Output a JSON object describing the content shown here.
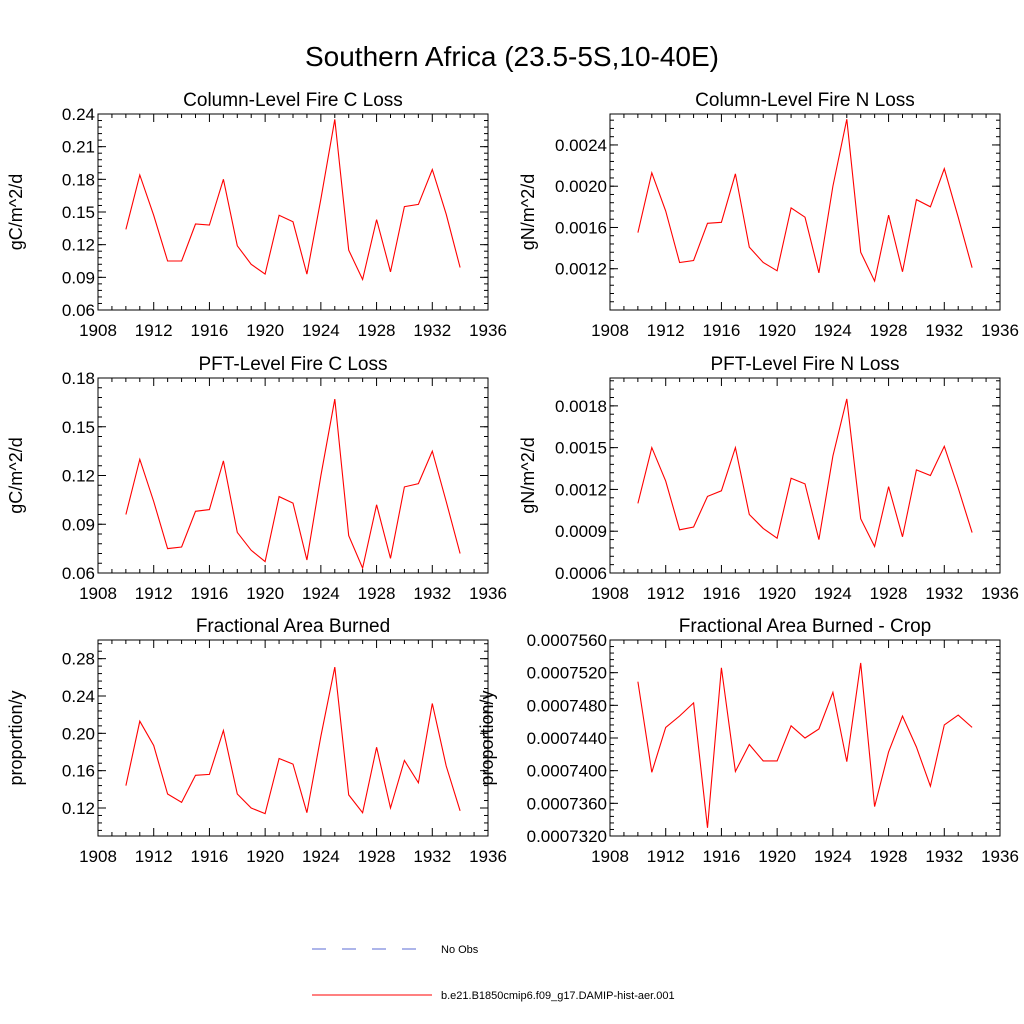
{
  "figure_title": "Southern Africa (23.5-5S,10-40E)",
  "legend": [
    {
      "label": "No Obs",
      "color": "#5b6bd6",
      "style": "dashed"
    },
    {
      "label": "b.e21.B1850cmip6.f09_g17.DAMIP-hist-aer.001",
      "color": "#ff0000",
      "style": "solid"
    }
  ],
  "chart_data": [
    {
      "type": "line",
      "title": "Column-Level Fire C Loss",
      "ylabel": "gC/m^2/d",
      "xlim": [
        1908,
        1936
      ],
      "xticks": [
        1908,
        1912,
        1916,
        1920,
        1924,
        1928,
        1932,
        1936
      ],
      "ylim": [
        0.06,
        0.24
      ],
      "yticks": [
        "0.06",
        "0.09",
        "0.12",
        "0.15",
        "0.18",
        "0.21",
        "0.24"
      ],
      "x": [
        1910,
        1911,
        1912,
        1913,
        1914,
        1915,
        1916,
        1917,
        1918,
        1919,
        1920,
        1921,
        1922,
        1923,
        1924,
        1925,
        1926,
        1927,
        1928,
        1929,
        1930,
        1931,
        1932,
        1933,
        1934
      ],
      "series": [
        {
          "name": "b.e21.B1850cmip6.f09_g17.DAMIP-hist-aer.001",
          "color": "#ff0000",
          "values": [
            0.134,
            0.184,
            0.147,
            0.105,
            0.105,
            0.139,
            0.138,
            0.18,
            0.119,
            0.102,
            0.093,
            0.147,
            0.141,
            0.093,
            0.162,
            0.235,
            0.115,
            0.088,
            0.143,
            0.095,
            0.155,
            0.157,
            0.189,
            0.148,
            0.099
          ]
        }
      ]
    },
    {
      "type": "line",
      "title": "Column-Level Fire N Loss",
      "ylabel": "gN/m^2/d",
      "xlim": [
        1908,
        1936
      ],
      "xticks": [
        1908,
        1912,
        1916,
        1920,
        1924,
        1928,
        1932,
        1936
      ],
      "ylim": [
        0.0008,
        0.0027
      ],
      "yticks": [
        "0.0012",
        "0.0016",
        "0.0020",
        "0.0024"
      ],
      "x": [
        1910,
        1911,
        1912,
        1913,
        1914,
        1915,
        1916,
        1917,
        1918,
        1919,
        1920,
        1921,
        1922,
        1923,
        1924,
        1925,
        1926,
        1927,
        1928,
        1929,
        1930,
        1931,
        1932,
        1933,
        1934
      ],
      "series": [
        {
          "name": "b.e21.B1850cmip6.f09_g17.DAMIP-hist-aer.001",
          "color": "#ff0000",
          "values": [
            0.00155,
            0.00213,
            0.00176,
            0.00126,
            0.00128,
            0.00164,
            0.00165,
            0.00212,
            0.00141,
            0.00126,
            0.00118,
            0.00179,
            0.0017,
            0.00116,
            0.002,
            0.00265,
            0.00136,
            0.00108,
            0.00172,
            0.00117,
            0.00187,
            0.0018,
            0.00217,
            0.0017,
            0.00121
          ]
        }
      ]
    },
    {
      "type": "line",
      "title": "PFT-Level Fire C Loss",
      "ylabel": "gC/m^2/d",
      "xlim": [
        1908,
        1936
      ],
      "xticks": [
        1908,
        1912,
        1916,
        1920,
        1924,
        1928,
        1932,
        1936
      ],
      "ylim": [
        0.06,
        0.18
      ],
      "yticks": [
        "0.06",
        "0.09",
        "0.12",
        "0.15",
        "0.18"
      ],
      "x": [
        1910,
        1911,
        1912,
        1913,
        1914,
        1915,
        1916,
        1917,
        1918,
        1919,
        1920,
        1921,
        1922,
        1923,
        1924,
        1925,
        1926,
        1927,
        1928,
        1929,
        1930,
        1931,
        1932,
        1933,
        1934
      ],
      "series": [
        {
          "name": "b.e21.B1850cmip6.f09_g17.DAMIP-hist-aer.001",
          "color": "#ff0000",
          "values": [
            0.096,
            0.13,
            0.104,
            0.075,
            0.076,
            0.098,
            0.099,
            0.129,
            0.085,
            0.074,
            0.067,
            0.107,
            0.103,
            0.068,
            0.12,
            0.167,
            0.083,
            0.063,
            0.102,
            0.069,
            0.113,
            0.115,
            0.135,
            0.104,
            0.072
          ]
        }
      ]
    },
    {
      "type": "line",
      "title": "PFT-Level Fire N Loss",
      "ylabel": "gN/m^2/d",
      "xlim": [
        1908,
        1936
      ],
      "xticks": [
        1908,
        1912,
        1916,
        1920,
        1924,
        1928,
        1932,
        1936
      ],
      "ylim": [
        0.0006,
        0.002
      ],
      "yticks": [
        "0.0006",
        "0.0009",
        "0.0012",
        "0.0015",
        "0.0018"
      ],
      "x": [
        1910,
        1911,
        1912,
        1913,
        1914,
        1915,
        1916,
        1917,
        1918,
        1919,
        1920,
        1921,
        1922,
        1923,
        1924,
        1925,
        1926,
        1927,
        1928,
        1929,
        1930,
        1931,
        1932,
        1933,
        1934
      ],
      "series": [
        {
          "name": "b.e21.B1850cmip6.f09_g17.DAMIP-hist-aer.001",
          "color": "#ff0000",
          "values": [
            0.0011,
            0.0015,
            0.00126,
            0.00091,
            0.00093,
            0.00115,
            0.00119,
            0.0015,
            0.00102,
            0.00092,
            0.00085,
            0.00128,
            0.00124,
            0.00084,
            0.00144,
            0.00185,
            0.00099,
            0.00079,
            0.00122,
            0.00086,
            0.00134,
            0.0013,
            0.00151,
            0.00121,
            0.00089
          ]
        }
      ]
    },
    {
      "type": "line",
      "title": "Fractional Area Burned",
      "ylabel": "proportion/y",
      "xlim": [
        1908,
        1936
      ],
      "xticks": [
        1908,
        1912,
        1916,
        1920,
        1924,
        1928,
        1932,
        1936
      ],
      "ylim": [
        0.09,
        0.3
      ],
      "yticks": [
        "0.12",
        "0.16",
        "0.20",
        "0.24",
        "0.28"
      ],
      "x": [
        1910,
        1911,
        1912,
        1913,
        1914,
        1915,
        1916,
        1917,
        1918,
        1919,
        1920,
        1921,
        1922,
        1923,
        1924,
        1925,
        1926,
        1927,
        1928,
        1929,
        1930,
        1931,
        1932,
        1933,
        1934
      ],
      "series": [
        {
          "name": "b.e21.B1850cmip6.f09_g17.DAMIP-hist-aer.001",
          "color": "#ff0000",
          "values": [
            0.144,
            0.213,
            0.187,
            0.135,
            0.126,
            0.155,
            0.156,
            0.203,
            0.135,
            0.12,
            0.114,
            0.173,
            0.167,
            0.115,
            0.197,
            0.271,
            0.134,
            0.115,
            0.185,
            0.12,
            0.171,
            0.147,
            0.232,
            0.165,
            0.117
          ]
        }
      ]
    },
    {
      "type": "line",
      "title": "Fractional Area Burned - Crop",
      "ylabel": "proportion/y",
      "xlim": [
        1908,
        1936
      ],
      "xticks": [
        1908,
        1912,
        1916,
        1920,
        1924,
        1928,
        1932,
        1936
      ],
      "ylim": [
        0.000732,
        0.000756
      ],
      "yticks": [
        "0.0007320",
        "0.0007360",
        "0.0007400",
        "0.0007440",
        "0.0007480",
        "0.0007520",
        "0.0007560"
      ],
      "x": [
        1910,
        1911,
        1912,
        1913,
        1914,
        1915,
        1916,
        1917,
        1918,
        1919,
        1920,
        1921,
        1922,
        1923,
        1924,
        1925,
        1926,
        1927,
        1928,
        1929,
        1930,
        1931,
        1932,
        1933,
        1934
      ],
      "series": [
        {
          "name": "b.e21.B1850cmip6.f09_g17.DAMIP-hist-aer.001",
          "color": "#ff0000",
          "values": [
            0.0007509,
            0.0007398,
            0.0007453,
            0.0007467,
            0.0007483,
            0.000733,
            0.0007526,
            0.0007399,
            0.0007432,
            0.0007412,
            0.0007412,
            0.0007455,
            0.000744,
            0.0007451,
            0.0007496,
            0.0007411,
            0.0007532,
            0.0007356,
            0.0007423,
            0.0007467,
            0.0007429,
            0.0007381,
            0.0007456,
            0.0007468,
            0.0007453
          ]
        }
      ]
    }
  ]
}
